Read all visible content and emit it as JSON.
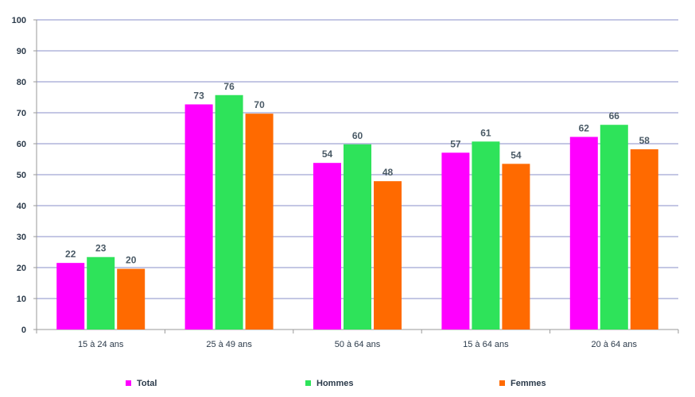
{
  "chart_data": {
    "type": "bar",
    "title": "",
    "xlabel": "",
    "ylabel": "",
    "ylim": [
      0,
      100
    ],
    "yticks": [
      0,
      10,
      20,
      30,
      40,
      50,
      60,
      70,
      80,
      90,
      100
    ],
    "grid": true,
    "legend_position": "bottom",
    "categories": [
      "15 à 24 ans",
      "25 à 49 ans",
      "50 à 64 ans",
      "15 à 64 ans",
      "20 à 64 ans"
    ],
    "series": [
      {
        "name": "Total",
        "color": "#ff00ff",
        "values": [
          21.5,
          72.7,
          53.8,
          57.1,
          62.2
        ],
        "labels": [
          "22",
          "73",
          "54",
          "57",
          "62"
        ]
      },
      {
        "name": "Hommes",
        "color": "#2ee35a",
        "values": [
          23.4,
          75.7,
          59.8,
          60.7,
          66.1
        ],
        "labels": [
          "23",
          "76",
          "60",
          "61",
          "66"
        ]
      },
      {
        "name": "Femmes",
        "color": "#ff6a00",
        "values": [
          19.6,
          69.7,
          47.9,
          53.5,
          58.2
        ],
        "labels": [
          "20",
          "70",
          "48",
          "54",
          "58"
        ]
      }
    ]
  }
}
